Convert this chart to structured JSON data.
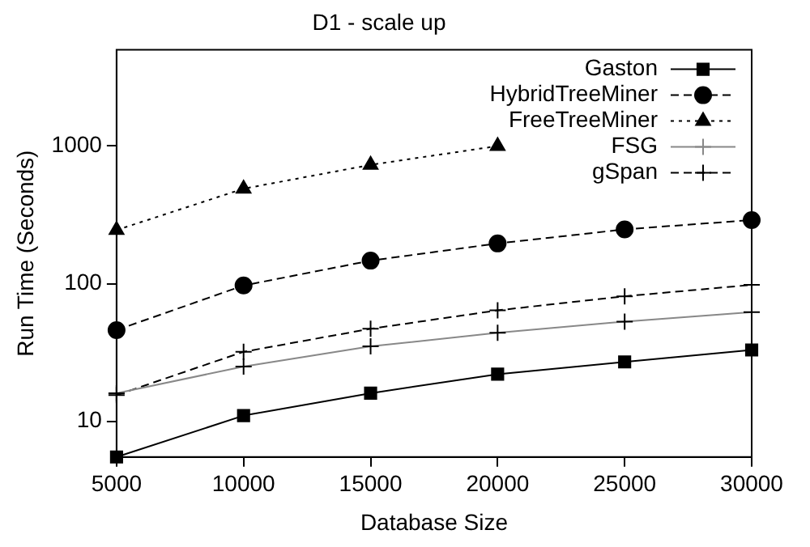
{
  "chart_data": {
    "type": "line",
    "title": "D1 - scale up",
    "xlabel": "Database Size",
    "ylabel": "Run Time (Seconds)",
    "x": [
      5000,
      10000,
      15000,
      20000,
      25000,
      30000
    ],
    "xlim": [
      5000,
      30000
    ],
    "xticks": [
      5000,
      10000,
      15000,
      20000,
      25000,
      30000
    ],
    "ylim": [
      5.5,
      5000
    ],
    "yticks": [
      10,
      100,
      1000
    ],
    "log": "y",
    "grid": false,
    "legend": "top right",
    "series": [
      {
        "name": "Gaston",
        "color": "#000000",
        "marker": "square",
        "line_style": "solid",
        "values": [
          5.5,
          11,
          16,
          22,
          27,
          33
        ]
      },
      {
        "name": "HybridTreeMiner",
        "color": "#000000",
        "marker": "circle",
        "line_style": "dashed",
        "values": [
          46,
          97,
          147,
          196,
          248,
          290
        ]
      },
      {
        "name": "FreeTreeMiner",
        "color": "#000000",
        "marker": "triangle",
        "line_style": "dotted",
        "values": [
          245,
          490,
          730,
          1000,
          null,
          null
        ]
      },
      {
        "name": "FSG",
        "color": "#888888",
        "marker": "cross",
        "line_style": "solid",
        "values": [
          16,
          25,
          35,
          44,
          53,
          62
        ]
      },
      {
        "name": "gSpan",
        "color": "#000000",
        "marker": "cross",
        "line_style": "dashed",
        "values": [
          15.5,
          32,
          47,
          64,
          81,
          98
        ]
      }
    ]
  }
}
